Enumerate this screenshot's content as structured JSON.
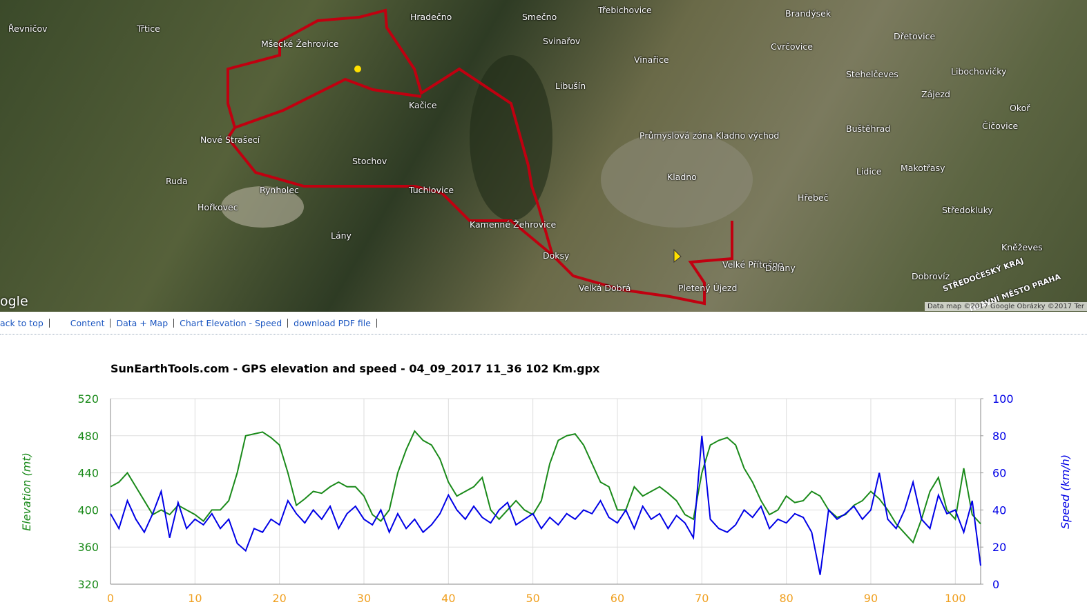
{
  "map": {
    "labels": [
      "Řevničov",
      "Třtice",
      "Mšecké Žehrovice",
      "Hradečno",
      "Smečno",
      "Třebichovice",
      "Brandýsek",
      "Dřetovice",
      "Svinařov",
      "Cvrčovice",
      "Vinařice",
      "Libušín",
      "Stehelčeves",
      "Libochovičky",
      "Kačice",
      "Zájezd",
      "Nové Strašecí",
      "Průmyslová zóna Kladno východ",
      "Buštěhrad",
      "Okoř",
      "Čičovice",
      "Stochov",
      "Kladno",
      "Lidice",
      "Makotřasy",
      "Ruda",
      "Rynholec",
      "Tuchlovice",
      "Hřebeč",
      "Hořkovec",
      "Středokluky",
      "Kamenné Žehrovice",
      "Lány",
      "Doksy",
      "Velké Přítočno",
      "Dolany",
      "Kněževes",
      "Pletený Újezd",
      "Velká Dobrá",
      "Dobrovíz",
      "STŘEDOČESKÝ KRAJ",
      "HLAVNÍ MĚSTO PRAHA"
    ],
    "logo": "ogle",
    "attribution": "Data map ©2017 Google Obrázky ©2017 Ter"
  },
  "nav": [
    "ack to top",
    "Content",
    "Data + Map",
    "Chart Elevation - Speed",
    "download PDF file"
  ],
  "chart_data": {
    "type": "line",
    "title": "SunEarthTools.com - GPS elevation and speed - 04_09_2017 11_36 102 Km.gpx",
    "y_label": "Elevation (mt)",
    "y2_label": "Speed (km/h)",
    "x": [
      0,
      1,
      2,
      3,
      4,
      5,
      6,
      7,
      8,
      9,
      10,
      11,
      12,
      13,
      14,
      15,
      16,
      17,
      18,
      19,
      20,
      21,
      22,
      23,
      24,
      25,
      26,
      27,
      28,
      29,
      30,
      31,
      32,
      33,
      34,
      35,
      36,
      37,
      38,
      39,
      40,
      41,
      42,
      43,
      44,
      45,
      46,
      47,
      48,
      49,
      50,
      51,
      52,
      53,
      54,
      55,
      56,
      57,
      58,
      59,
      60,
      61,
      62,
      63,
      64,
      65,
      66,
      67,
      68,
      69,
      70,
      71,
      72,
      73,
      74,
      75,
      76,
      77,
      78,
      79,
      80,
      81,
      82,
      83,
      84,
      85,
      86,
      87,
      88,
      89,
      90,
      91,
      92,
      93,
      94,
      95,
      96,
      97,
      98,
      99,
      100,
      101,
      102,
      103
    ],
    "series": [
      {
        "name": "Elevation",
        "color": "#1a8a1a",
        "values": [
          425,
          430,
          440,
          425,
          410,
          395,
          400,
          395,
          405,
          400,
          395,
          388,
          400,
          400,
          410,
          440,
          480,
          482,
          484,
          478,
          470,
          440,
          405,
          412,
          420,
          418,
          425,
          430,
          425,
          425,
          415,
          395,
          388,
          400,
          440,
          465,
          485,
          475,
          470,
          455,
          430,
          415,
          420,
          425,
          435,
          400,
          390,
          400,
          410,
          400,
          395,
          410,
          450,
          475,
          480,
          482,
          470,
          450,
          430,
          425,
          400,
          400,
          425,
          415,
          420,
          425,
          418,
          410,
          395,
          390,
          440,
          470,
          475,
          478,
          470,
          445,
          430,
          410,
          395,
          400,
          415,
          408,
          410,
          420,
          415,
          400,
          392,
          395,
          405,
          410,
          420,
          412,
          400,
          385,
          375,
          365,
          390,
          420,
          435,
          400,
          390,
          445,
          395,
          385
        ]
      },
      {
        "name": "Speed",
        "color": "#0000e6",
        "axis": "y2",
        "values": [
          38,
          30,
          45,
          35,
          28,
          38,
          50,
          25,
          44,
          30,
          35,
          32,
          38,
          30,
          35,
          22,
          18,
          30,
          28,
          35,
          32,
          45,
          38,
          33,
          40,
          35,
          42,
          30,
          38,
          42,
          35,
          32,
          40,
          28,
          38,
          30,
          35,
          28,
          32,
          38,
          48,
          40,
          35,
          42,
          36,
          33,
          40,
          44,
          32,
          35,
          38,
          30,
          36,
          32,
          38,
          35,
          40,
          38,
          45,
          36,
          33,
          40,
          30,
          42,
          35,
          38,
          30,
          37,
          33,
          25,
          80,
          35,
          30,
          28,
          32,
          40,
          36,
          42,
          30,
          35,
          33,
          38,
          36,
          28,
          5,
          40,
          35,
          38,
          42,
          35,
          40,
          60,
          35,
          30,
          40,
          55,
          35,
          30,
          48,
          38,
          40,
          28,
          45,
          10
        ]
      }
    ],
    "xlim": [
      0,
      103
    ],
    "xticks": [
      0,
      10,
      20,
      30,
      40,
      50,
      60,
      70,
      80,
      90,
      100
    ],
    "ylim": [
      320,
      520
    ],
    "yticks": [
      320,
      360,
      400,
      440,
      480,
      520
    ],
    "y2lim": [
      0,
      100
    ],
    "y2ticks": [
      0,
      20,
      40,
      60,
      80,
      100
    ],
    "grid": true
  }
}
